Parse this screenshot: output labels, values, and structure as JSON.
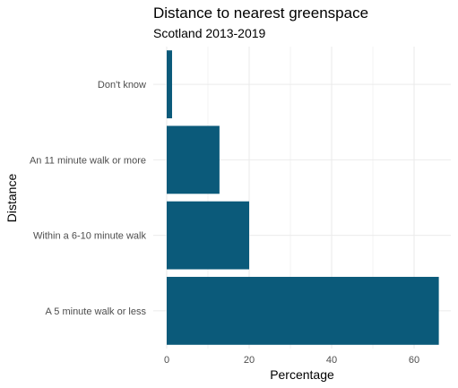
{
  "chart_data": {
    "type": "bar",
    "orientation": "horizontal",
    "title": "Distance to nearest greenspace",
    "subtitle": "Scotland 2013-2019",
    "xlabel": "Percentage",
    "ylabel": "Distance",
    "categories": [
      "A 5 minute walk or less",
      "Within a 6-10 minute walk",
      "An 11 minute walk or more",
      "Don't know"
    ],
    "values": [
      66,
      20,
      12.8,
      1.3
    ],
    "xlim": [
      0,
      69
    ],
    "xticks": [
      0,
      20,
      40,
      60
    ],
    "grid": true,
    "bar_color": "#0b5a7a",
    "grid_color": "#ebebeb"
  }
}
